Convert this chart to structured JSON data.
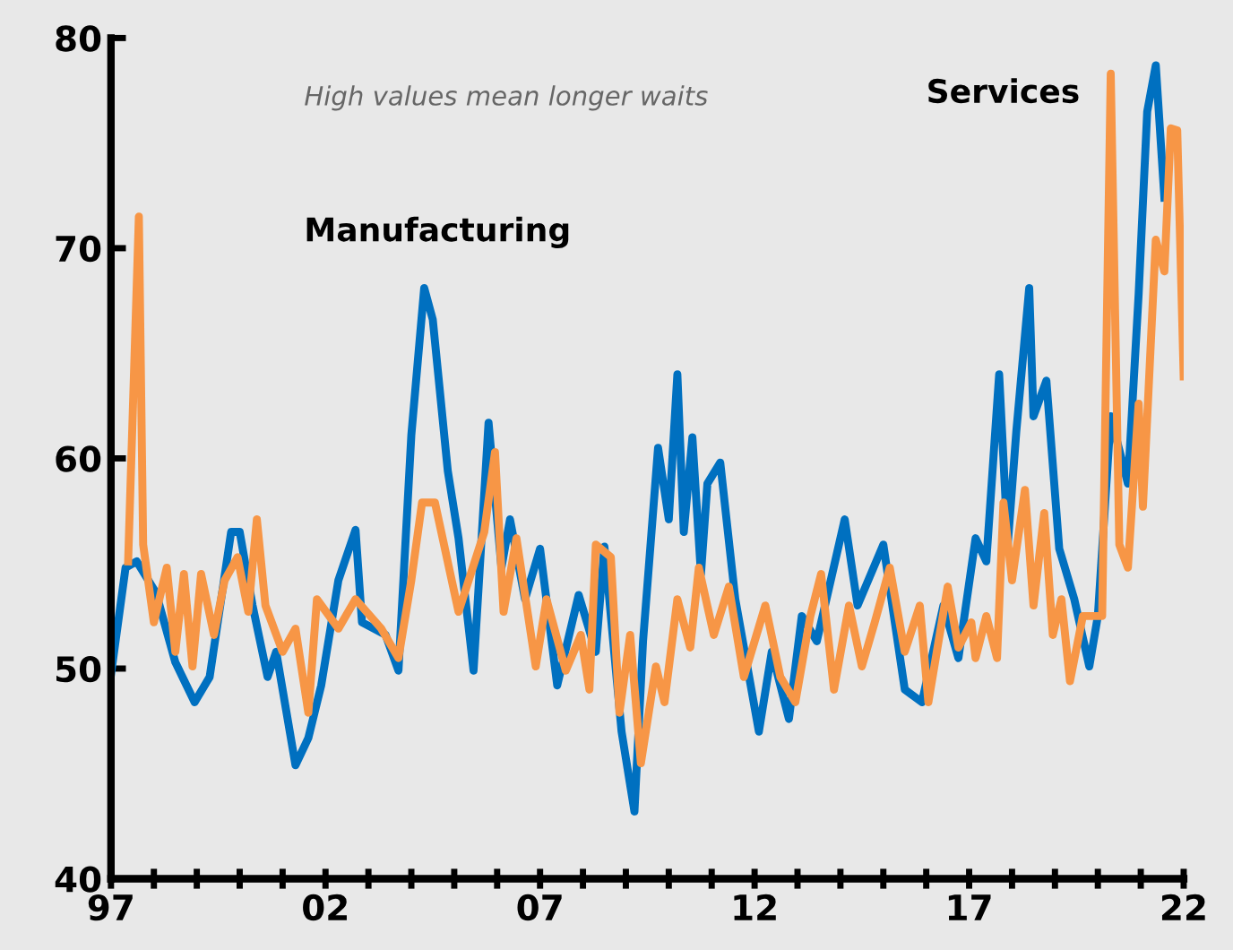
{
  "chart_data": {
    "type": "line",
    "annotations": [
      "High values mean longer waits"
    ],
    "xlim": [
      1997,
      2022
    ],
    "ylim": [
      40,
      80
    ],
    "yticks": [
      40,
      50,
      60,
      70,
      80
    ],
    "xticks": [
      {
        "value": 1997,
        "label": "97"
      },
      {
        "value": 1998,
        "label": null
      },
      {
        "value": 1999,
        "label": null
      },
      {
        "value": 2000,
        "label": null
      },
      {
        "value": 2001,
        "label": null
      },
      {
        "value": 2002,
        "label": "02"
      },
      {
        "value": 2003,
        "label": null
      },
      {
        "value": 2004,
        "label": null
      },
      {
        "value": 2005,
        "label": null
      },
      {
        "value": 2006,
        "label": null
      },
      {
        "value": 2007,
        "label": "07"
      },
      {
        "value": 2008,
        "label": null
      },
      {
        "value": 2009,
        "label": null
      },
      {
        "value": 2010,
        "label": null
      },
      {
        "value": 2011,
        "label": null
      },
      {
        "value": 2012,
        "label": "12"
      },
      {
        "value": 2013,
        "label": null
      },
      {
        "value": 2014,
        "label": null
      },
      {
        "value": 2015,
        "label": null
      },
      {
        "value": 2016,
        "label": null
      },
      {
        "value": 2017,
        "label": "17"
      },
      {
        "value": 2018,
        "label": null
      },
      {
        "value": 2019,
        "label": null
      },
      {
        "value": 2020,
        "label": null
      },
      {
        "value": 2021,
        "label": null
      },
      {
        "value": 2022,
        "label": "22"
      }
    ],
    "grid": false,
    "legend": false,
    "marker": "none",
    "line_style": "solid",
    "series": [
      {
        "name": "Manufacturing",
        "color": "#0070c0",
        "x": [
          1997.0,
          1997.34,
          1997.6,
          1998.05,
          1998.5,
          1998.95,
          1999.3,
          1999.8,
          2000.0,
          2000.3,
          2000.65,
          2000.85,
          2001.3,
          2001.6,
          2001.9,
          2002.3,
          2002.7,
          2002.85,
          2003.4,
          2003.7,
          2004.0,
          2004.3,
          2004.5,
          2004.85,
          2005.1,
          2005.45,
          2005.8,
          2006.1,
          2006.3,
          2006.65,
          2007.0,
          2007.4,
          2007.9,
          2008.3,
          2008.5,
          2008.9,
          2009.2,
          2009.4,
          2009.75,
          2010.0,
          2010.2,
          2010.35,
          2010.55,
          2010.75,
          2010.9,
          2011.2,
          2011.55,
          2011.9,
          2012.1,
          2012.4,
          2012.8,
          2013.1,
          2013.45,
          2014.1,
          2014.4,
          2015.0,
          2015.5,
          2015.9,
          2016.4,
          2016.75,
          2017.15,
          2017.4,
          2017.7,
          2017.9,
          2018.1,
          2018.4,
          2018.5,
          2018.8,
          2019.1,
          2019.45,
          2019.8,
          2020.0,
          2020.3,
          2020.7,
          2020.95,
          2021.15,
          2021.35,
          2021.55
        ],
        "values": [
          49.7,
          54.8,
          55.1,
          53.6,
          50.3,
          48.4,
          49.6,
          56.5,
          56.5,
          53.0,
          49.6,
          50.8,
          45.4,
          46.7,
          49.2,
          54.2,
          56.6,
          52.2,
          51.6,
          49.9,
          61.1,
          68.1,
          66.6,
          59.4,
          56.2,
          49.9,
          61.7,
          54.8,
          57.1,
          53.3,
          55.7,
          49.2,
          53.5,
          50.8,
          55.8,
          47.0,
          43.2,
          51.3,
          60.5,
          57.1,
          64.0,
          56.5,
          61.0,
          54.5,
          58.8,
          59.8,
          53.3,
          49.3,
          47.0,
          50.8,
          47.6,
          52.5,
          51.3,
          57.1,
          53.0,
          55.9,
          49.0,
          48.4,
          53.0,
          50.5,
          56.2,
          55.1,
          64.0,
          55.9,
          61.3,
          68.1,
          62.0,
          63.7,
          55.7,
          53.3,
          50.1,
          52.5,
          62.0,
          58.8,
          67.8,
          76.5,
          78.7,
          72.4
        ]
      },
      {
        "name": "Services",
        "color": "#f79646",
        "x": [
          1997.4,
          1997.65,
          1997.75,
          1998.0,
          1998.3,
          1998.5,
          1998.7,
          1998.9,
          1999.1,
          1999.4,
          1999.65,
          1999.95,
          2000.2,
          2000.4,
          2000.6,
          2001.0,
          2001.3,
          2001.6,
          2001.8,
          2002.3,
          2002.7,
          2003.3,
          2003.7,
          2004.0,
          2004.25,
          2004.55,
          2005.1,
          2005.7,
          2005.95,
          2006.15,
          2006.45,
          2006.9,
          2007.15,
          2007.6,
          2007.95,
          2008.15,
          2008.3,
          2008.65,
          2008.85,
          2009.1,
          2009.35,
          2009.7,
          2009.9,
          2010.2,
          2010.5,
          2010.7,
          2011.05,
          2011.4,
          2011.75,
          2012.25,
          2012.6,
          2012.95,
          2013.3,
          2013.55,
          2013.85,
          2014.2,
          2014.5,
          2014.8,
          2015.15,
          2015.5,
          2015.85,
          2016.05,
          2016.5,
          2016.75,
          2017.05,
          2017.15,
          2017.4,
          2017.65,
          2017.8,
          2018.0,
          2018.3,
          2018.5,
          2018.75,
          2018.95,
          2019.15,
          2019.35,
          2019.65,
          2020.1,
          2020.3,
          2020.5,
          2020.7,
          2020.95,
          2021.05,
          2021.35,
          2021.55,
          2021.7,
          2021.85,
          2022.0
        ],
        "values": [
          55.1,
          71.5,
          55.9,
          52.2,
          54.8,
          50.8,
          54.5,
          50.1,
          54.5,
          51.6,
          54.2,
          55.3,
          52.7,
          57.1,
          53.0,
          50.8,
          51.9,
          47.9,
          53.3,
          51.9,
          53.3,
          51.9,
          50.5,
          54.2,
          57.9,
          57.9,
          52.7,
          56.5,
          60.3,
          52.7,
          56.2,
          50.1,
          53.3,
          49.9,
          51.6,
          49.0,
          55.9,
          55.3,
          47.9,
          51.6,
          45.5,
          50.1,
          48.4,
          53.3,
          51.0,
          54.8,
          51.6,
          53.9,
          49.6,
          53.0,
          49.6,
          48.4,
          52.5,
          54.5,
          49.0,
          53.0,
          50.1,
          52.2,
          54.8,
          50.8,
          53.0,
          48.4,
          53.9,
          51.0,
          52.2,
          50.5,
          52.5,
          50.5,
          57.9,
          54.2,
          58.5,
          53.0,
          57.4,
          51.6,
          53.3,
          49.4,
          52.5,
          52.5,
          78.3,
          55.9,
          54.8,
          62.6,
          57.7,
          70.4,
          68.9,
          75.7,
          75.6,
          63.9
        ]
      }
    ]
  }
}
